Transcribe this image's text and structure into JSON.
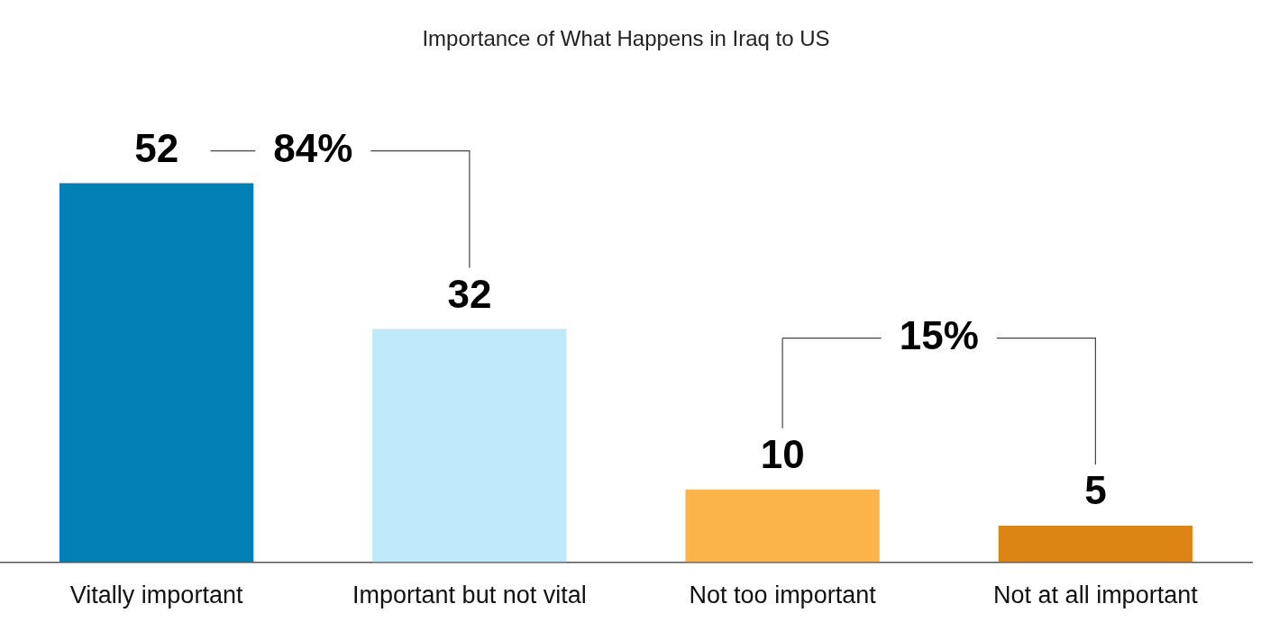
{
  "chart_data": {
    "type": "bar",
    "title": "Importance of What Happens in Iraq to US",
    "categories": [
      "Vitally important",
      "Important but not vital",
      "Not too important",
      "Not at all important"
    ],
    "values": [
      52,
      32,
      10,
      5
    ],
    "colors": [
      "#0080b4",
      "#bde9fa",
      "#fbb44a",
      "#dd8514"
    ],
    "data_labels": true,
    "annotations": [
      "84%",
      "15%"
    ],
    "grid": false,
    "legend": false
  }
}
